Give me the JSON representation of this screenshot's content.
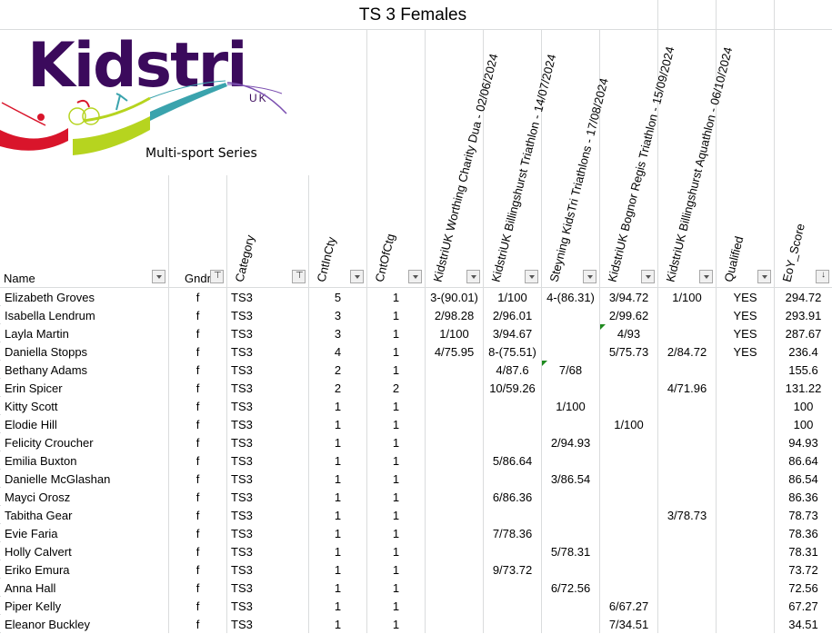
{
  "title": "TS 3  Females",
  "logo": {
    "brand": "Kidstri",
    "suffix": "UK",
    "tagline": "Multi-sport  Series",
    "colors": {
      "purple": "#3b0a5c",
      "red": "#d9152b",
      "lime": "#b6d41f",
      "teal": "#3aa3ad",
      "violet": "#7b4fb0"
    }
  },
  "columns": [
    {
      "label": "Name",
      "rotated": false,
      "filter": "dropdown"
    },
    {
      "label": "Gndr",
      "rotated": false,
      "filter": "filtered"
    },
    {
      "label": "Category",
      "rotated": true,
      "filter": "filtered"
    },
    {
      "label": "CntInCty",
      "rotated": true,
      "filter": "dropdown"
    },
    {
      "label": "CntOfCtg",
      "rotated": true,
      "filter": "dropdown"
    },
    {
      "label": "KidstriUK Worthing Charity Dua - 02/06/2024",
      "rotated": true,
      "filter": "dropdown"
    },
    {
      "label": "KidstriUK Billingshurst Triathlon - 14/07/2024",
      "rotated": true,
      "filter": "dropdown"
    },
    {
      "label": "Steyning KidsTri Triathlons - 17/08/2024",
      "rotated": true,
      "filter": "dropdown"
    },
    {
      "label": "KidstriUK Bognor Regis Triathlon - 15/09/2024",
      "rotated": true,
      "filter": "dropdown"
    },
    {
      "label": "KidstriUK Billingshurst Aquathlon - 06/10/2024",
      "rotated": true,
      "filter": "dropdown"
    },
    {
      "label": "Qualified",
      "rotated": true,
      "filter": "dropdown"
    },
    {
      "label": "EoY_Score",
      "rotated": true,
      "filter": "sorted"
    }
  ],
  "rows": [
    [
      "Elizabeth Groves",
      "f",
      "TS3",
      "5",
      "1",
      "3-(90.01)",
      "1/100",
      "4-(86.31)",
      "3/94.72",
      "1/100",
      "YES",
      "294.72"
    ],
    [
      "Isabella Lendrum",
      "f",
      "TS3",
      "3",
      "1",
      "2/98.28",
      "2/96.01",
      "",
      "2/99.62",
      "",
      "YES",
      "293.91"
    ],
    [
      "Layla Martin",
      "f",
      "TS3",
      "3",
      "1",
      "1/100",
      "3/94.67",
      "",
      "4/93",
      "",
      "YES",
      "287.67"
    ],
    [
      "Daniella Stopps",
      "f",
      "TS3",
      "4",
      "1",
      "4/75.95",
      "8-(75.51)",
      "",
      "5/75.73",
      "2/84.72",
      "YES",
      "236.4"
    ],
    [
      "Bethany Adams",
      "f",
      "TS3",
      "2",
      "1",
      "",
      "4/87.6",
      "7/68",
      "",
      "",
      "",
      "155.6"
    ],
    [
      "Erin Spicer",
      "f",
      "TS3",
      "2",
      "2",
      "",
      "10/59.26",
      "",
      "",
      "4/71.96",
      "",
      "131.22"
    ],
    [
      "Kitty Scott",
      "f",
      "TS3",
      "1",
      "1",
      "",
      "",
      "1/100",
      "",
      "",
      "",
      "100"
    ],
    [
      "Elodie Hill",
      "f",
      "TS3",
      "1",
      "1",
      "",
      "",
      "",
      "1/100",
      "",
      "",
      "100"
    ],
    [
      "Felicity Croucher",
      "f",
      "TS3",
      "1",
      "1",
      "",
      "",
      "2/94.93",
      "",
      "",
      "",
      "94.93"
    ],
    [
      "Emilia Buxton",
      "f",
      "TS3",
      "1",
      "1",
      "",
      "5/86.64",
      "",
      "",
      "",
      "",
      "86.64"
    ],
    [
      "Danielle McGlashan",
      "f",
      "TS3",
      "1",
      "1",
      "",
      "",
      "3/86.54",
      "",
      "",
      "",
      "86.54"
    ],
    [
      "Mayci Orosz",
      "f",
      "TS3",
      "1",
      "1",
      "",
      "6/86.36",
      "",
      "",
      "",
      "",
      "86.36"
    ],
    [
      "Tabitha Gear",
      "f",
      "TS3",
      "1",
      "1",
      "",
      "",
      "",
      "",
      "3/78.73",
      "",
      "78.73"
    ],
    [
      "Evie Faria",
      "f",
      "TS3",
      "1",
      "1",
      "",
      "7/78.36",
      "",
      "",
      "",
      "",
      "78.36"
    ],
    [
      "Holly Calvert",
      "f",
      "TS3",
      "1",
      "1",
      "",
      "",
      "5/78.31",
      "",
      "",
      "",
      "78.31"
    ],
    [
      "Eriko Emura",
      "f",
      "TS3",
      "1",
      "1",
      "",
      "9/73.72",
      "",
      "",
      "",
      "",
      "73.72"
    ],
    [
      "Anna Hall",
      "f",
      "TS3",
      "1",
      "1",
      "",
      "",
      "6/72.56",
      "",
      "",
      "",
      "72.56"
    ],
    [
      "Piper Kelly",
      "f",
      "TS3",
      "1",
      "1",
      "",
      "",
      "",
      "6/67.27",
      "",
      "",
      "67.27"
    ],
    [
      "Eleanor Buckley",
      "f",
      "TS3",
      "1",
      "1",
      "",
      "",
      "",
      "7/34.51",
      "",
      "",
      "34.51"
    ]
  ],
  "comment_indicator_color": "#1f8a1f"
}
